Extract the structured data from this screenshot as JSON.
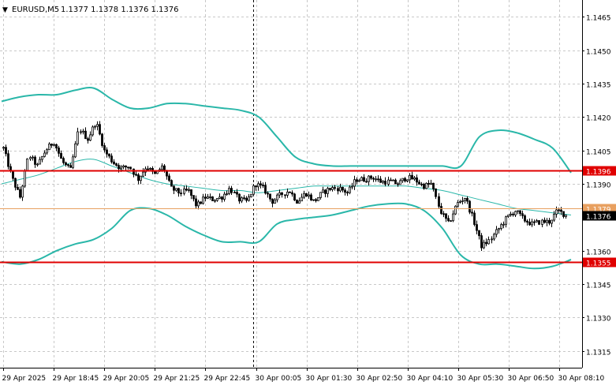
{
  "header": {
    "arrow": "▼",
    "symbol": "EURUSD,M5",
    "ohlc": "1.1377 1.1378 1.1376 1.1376"
  },
  "colors": {
    "background": "#ffffff",
    "grid": "#c8c8c8",
    "candle": "#000000",
    "bollinger": "#2ab7a9",
    "ma": "#2ab7a9",
    "level_red": "#e00000",
    "level_orange": "#e8a060",
    "price_box": "#000000",
    "text": "#000000"
  },
  "chart_data": {
    "type": "candlestick",
    "symbol": "EURUSD",
    "timeframe": "M5",
    "ylim": [
      1.13075,
      1.14725
    ],
    "y_ticks": [
      "1.1465",
      "1.1450",
      "1.1435",
      "1.1420",
      "1.1405",
      "1.1390",
      "1.1360",
      "1.1345",
      "1.1330",
      "1.1315"
    ],
    "x_ticks": [
      "29 Apr 2025",
      "29 Apr 18:45",
      "29 Apr 20:05",
      "29 Apr 21:25",
      "29 Apr 22:45",
      "30 Apr 00:05",
      "30 Apr 01:30",
      "30 Apr 02:50",
      "30 Apr 04:10",
      "30 Apr 05:30",
      "30 Apr 06:50",
      "30 Apr 08:10"
    ],
    "grid": true,
    "period_separator_label": "30 Apr 00:05",
    "levels": [
      {
        "value": 1.1396,
        "label": "1.1396",
        "color": "#e00000"
      },
      {
        "value": 1.1379,
        "label": "1.1379",
        "color": "#e8a060"
      },
      {
        "value": 1.1355,
        "label": "1.1355",
        "color": "#e00000"
      }
    ],
    "current_price": {
      "value": 1.1376,
      "label": "1.1376"
    },
    "path": [
      [
        1.1406,
        1.1393
      ],
      [
        1.1384,
        1.1403
      ],
      [
        1.1398,
        1.1405
      ],
      [
        1.1409,
        1.14
      ],
      [
        1.1396,
        1.1415
      ],
      [
        1.141,
        1.1418
      ],
      [
        1.1405,
        1.14
      ],
      [
        1.1397,
        1.1398
      ],
      [
        1.1392,
        1.1398
      ],
      [
        1.1394,
        1.1398
      ],
      [
        1.1388,
        1.1386
      ],
      [
        1.1387,
        1.138
      ],
      [
        1.1384,
        1.1383
      ],
      [
        1.1384,
        1.1388
      ],
      [
        1.1383,
        1.1382
      ],
      [
        1.139,
        1.1388
      ],
      [
        1.1382,
        1.1385
      ],
      [
        1.1387,
        1.1382
      ],
      [
        1.1386,
        1.1382
      ],
      [
        1.1386,
        1.1388
      ],
      [
        1.1388,
        1.1386
      ],
      [
        1.1392,
        1.1392
      ],
      [
        1.1393,
        1.1391
      ],
      [
        1.1391,
        1.139
      ],
      [
        1.1393,
        1.1392
      ],
      [
        1.1389,
        1.139
      ],
      [
        1.1378,
        1.1372
      ],
      [
        1.1381,
        1.1384
      ],
      [
        1.1374,
        1.1362
      ],
      [
        1.1365,
        1.137
      ],
      [
        1.1375,
        1.1378
      ],
      [
        1.1374,
        1.1372
      ],
      [
        1.1373,
        1.1373
      ],
      [
        1.1378,
        1.1376
      ]
    ],
    "bollinger_upper": [
      1.1427,
      1.1429,
      1.143,
      1.143,
      1.1432,
      1.1433,
      1.1428,
      1.1424,
      1.1424,
      1.1426,
      1.1426,
      1.1425,
      1.1424,
      1.1423,
      1.142,
      1.1411,
      1.1402,
      1.1399,
      1.1398,
      1.1398,
      1.1398,
      1.1398,
      1.1398,
      1.1398,
      1.1398,
      1.1398,
      1.1411,
      1.1414,
      1.1413,
      1.141,
      1.1406,
      1.1395
    ],
    "bollinger_lower": [
      1.1355,
      1.1354,
      1.1356,
      1.136,
      1.1363,
      1.1365,
      1.137,
      1.1378,
      1.1379,
      1.1376,
      1.1371,
      1.1367,
      1.1364,
      1.1364,
      1.1364,
      1.1372,
      1.1374,
      1.1375,
      1.1376,
      1.1378,
      1.138,
      1.1381,
      1.1381,
      1.1378,
      1.137,
      1.1358,
      1.1354,
      1.1354,
      1.1353,
      1.1352,
      1.1353,
      1.1356
    ],
    "moving_average": [
      1.139,
      1.1392,
      1.1394,
      1.1397,
      1.14,
      1.1401,
      1.1398,
      1.1395,
      1.1392,
      1.139,
      1.1389,
      1.1388,
      1.1387,
      1.1387,
      1.1386,
      1.1387,
      1.1388,
      1.1389,
      1.1389,
      1.1389,
      1.1389,
      1.1389,
      1.1389,
      1.1388,
      1.1387,
      1.1385,
      1.1383,
      1.1381,
      1.1379,
      1.1378,
      1.1377,
      1.1376
    ]
  }
}
